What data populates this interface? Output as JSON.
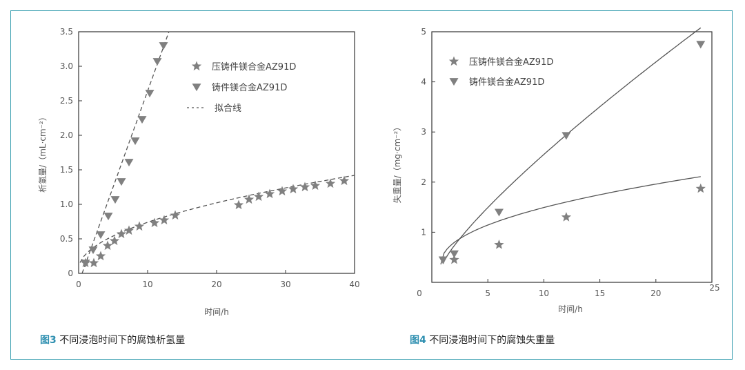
{
  "chart_data": [
    {
      "type": "scatter",
      "caption_num": "图3",
      "caption": " 不同浸泡时间下的腐蚀析氢量",
      "xlabel": "时间/h",
      "ylabel": "析氢量/（mL·cm⁻²）",
      "xlim": [
        0,
        40
      ],
      "ylim": [
        0,
        3.5
      ],
      "xticks": [
        "0",
        "10",
        "20",
        "30",
        "40"
      ],
      "yticks": [
        "0",
        "0.5",
        "1.0",
        "1.5",
        "2.0",
        "2.5",
        "3.0",
        "3.5"
      ],
      "xtick_values": [
        0,
        10,
        20,
        30,
        40
      ],
      "ytick_values": [
        0,
        0.5,
        1.0,
        1.5,
        2.0,
        2.5,
        3.0,
        3.5
      ],
      "legend": [
        "压铸件镁合金AZ91D",
        "铸件镁合金AZ91D",
        "拟合线"
      ],
      "fit_style": "dashed",
      "series": [
        {
          "name": "压铸件镁合金AZ91D",
          "marker": "star",
          "x": [
            1,
            2.2,
            3.2,
            4.2,
            5.2,
            6.2,
            7.3,
            8.8,
            11,
            12.4,
            14,
            23.2,
            24.7,
            26.1,
            27.7,
            29.5,
            31.1,
            32.8,
            34.3,
            36.5,
            38.5
          ],
          "y": [
            0.15,
            0.15,
            0.25,
            0.4,
            0.47,
            0.57,
            0.62,
            0.68,
            0.73,
            0.77,
            0.84,
            0.99,
            1.07,
            1.11,
            1.15,
            1.19,
            1.22,
            1.25,
            1.27,
            1.3,
            1.34
          ]
        },
        {
          "name": "铸件镁合金AZ91D",
          "marker": "triangle-down",
          "x": [
            1,
            2.1,
            3.2,
            4.3,
            5.3,
            6.2,
            7.3,
            8.2,
            9.2,
            10.3,
            11.4,
            12.3
          ],
          "y": [
            0.15,
            0.34,
            0.56,
            0.83,
            1.07,
            1.33,
            1.61,
            1.92,
            2.23,
            2.61,
            3.07,
            3.3
          ]
        }
      ]
    },
    {
      "type": "scatter",
      "caption_num": "图4",
      "caption": " 不同浸泡时间下的腐蚀失重量",
      "xlabel": "时间/h",
      "ylabel": "失重量/（mg·cm⁻²）",
      "xlim": [
        0,
        25
      ],
      "ylim": [
        0,
        5
      ],
      "xticks": [
        "0",
        "5",
        "10",
        "15",
        "20",
        "25"
      ],
      "yticks": [
        "1",
        "2",
        "3",
        "4",
        "5"
      ],
      "xtick_values": [
        0,
        5,
        10,
        15,
        20,
        25
      ],
      "ytick_values": [
        1,
        2,
        3,
        4,
        5
      ],
      "legend": [
        "压铸件镁合金AZ91D",
        "铸件镁合金AZ91D"
      ],
      "fit_style": "solid",
      "series": [
        {
          "name": "压铸件镁合金AZ91D",
          "marker": "star",
          "x": [
            2,
            6,
            12,
            24
          ],
          "y": [
            0.45,
            0.75,
            1.3,
            1.87
          ]
        },
        {
          "name": "铸件镁合金AZ91D",
          "marker": "triangle-down",
          "x": [
            1,
            2,
            6,
            12,
            24
          ],
          "y": [
            0.45,
            0.57,
            1.4,
            2.93,
            4.75
          ]
        }
      ]
    }
  ]
}
